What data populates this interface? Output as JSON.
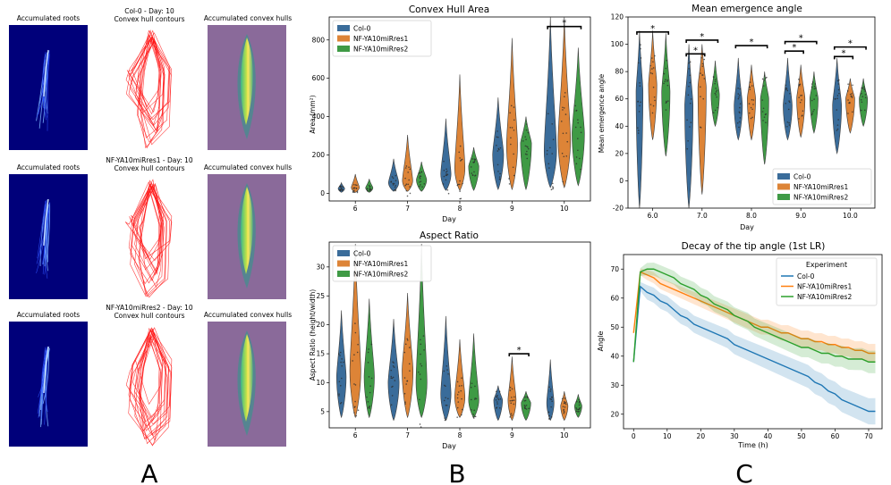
{
  "colors": {
    "col0": "#1f77b4",
    "res1": "#ff7f0e",
    "res2": "#2ca02c",
    "violin_blue": "#3a6c9a",
    "violin_orange": "#dd8437",
    "violin_green": "#3f9a45",
    "root_bg": "#00007a",
    "hull_bg": "#8a6a9a",
    "hull_line": "#ff1010",
    "sig_bar": "#000000"
  },
  "panel_letters": [
    "A",
    "B",
    "C"
  ],
  "panel_a": {
    "rows": [
      {
        "left_title": "Accumulated roots",
        "mid_title_1": "Col-0 - Day: 10",
        "mid_title_2": "Convex hull contours",
        "right_title": "Accumulated convex hulls"
      },
      {
        "left_title": "Accumulated roots",
        "mid_title_1": "NF-YA10miRres1 - Day: 10",
        "mid_title_2": "Convex hull contours",
        "right_title": "Accumulated convex hulls"
      },
      {
        "left_title": "Accumulated roots",
        "mid_title_1": "NF-YA10miRres2 - Day: 10",
        "mid_title_2": "Convex hull contours",
        "right_title": "Accumulated convex hulls"
      }
    ]
  },
  "chart_data": [
    {
      "id": "convex_hull_area",
      "type": "violin",
      "title": "Convex Hull Area",
      "xlabel": "Day",
      "ylabel": "Area (mm²)",
      "categories": [
        "6",
        "7",
        "8",
        "9",
        "10"
      ],
      "ylim": [
        -40,
        920
      ],
      "yticks": [
        0,
        200,
        400,
        600,
        800
      ],
      "legend": {
        "placement": "top-left",
        "entries": [
          "Col-0",
          "NF-YA10miRres1",
          "NF-YA10miRres2"
        ]
      },
      "series": [
        {
          "name": "Col-0",
          "color": "#3a6c9a",
          "min": [
            5,
            10,
            15,
            20,
            30
          ],
          "median": [
            25,
            55,
            100,
            200,
            220
          ],
          "max": [
            55,
            180,
            390,
            500,
            920
          ],
          "width": [
            0.45,
            0.7,
            0.7,
            0.75,
            0.85
          ]
        },
        {
          "name": "NF-YA10miRres1",
          "color": "#dd8437",
          "min": [
            5,
            10,
            15,
            20,
            30
          ],
          "median": [
            30,
            65,
            130,
            250,
            280
          ],
          "max": [
            100,
            305,
            620,
            810,
            920
          ],
          "width": [
            0.55,
            0.7,
            0.7,
            0.75,
            0.85
          ]
        },
        {
          "name": "NF-YA10miRres2",
          "color": "#3f9a45",
          "min": [
            5,
            10,
            15,
            20,
            40
          ],
          "median": [
            28,
            70,
            140,
            260,
            310
          ],
          "max": [
            75,
            165,
            240,
            400,
            760
          ],
          "width": [
            0.5,
            0.7,
            0.7,
            0.75,
            0.85
          ]
        }
      ],
      "significance": [
        {
          "day": "10",
          "label": "*",
          "level": 870
        }
      ]
    },
    {
      "id": "aspect_ratio",
      "type": "violin",
      "title": "Aspect Ratio",
      "xlabel": "Day",
      "ylabel": "Aspect Ratio (height/width)",
      "categories": [
        "6",
        "7",
        "8",
        "9",
        "10"
      ],
      "ylim": [
        2.2,
        34.3
      ],
      "yticks": [
        5,
        10,
        15,
        20,
        25,
        30
      ],
      "legend": {
        "placement": "top-left",
        "entries": [
          "Col-0",
          "NF-YA10miRres1",
          "NF-YA10miRres2"
        ]
      },
      "series": [
        {
          "name": "Col-0",
          "color": "#3a6c9a",
          "min": [
            4,
            3.5,
            3.5,
            3.5,
            3.5
          ],
          "median": [
            11,
            10,
            8,
            7,
            6.5
          ],
          "max": [
            22.5,
            21,
            21.5,
            9.5,
            14
          ],
          "width": [
            0.65,
            0.75,
            0.7,
            0.6,
            0.5
          ]
        },
        {
          "name": "NF-YA10miRres1",
          "color": "#dd8437",
          "min": [
            4,
            4,
            4,
            3.5,
            3.5
          ],
          "median": [
            12,
            12,
            7.5,
            7,
            6
          ],
          "max": [
            34,
            25.5,
            17.5,
            14.5,
            8.5
          ],
          "width": [
            0.75,
            0.75,
            0.7,
            0.55,
            0.5
          ]
        },
        {
          "name": "NF-YA10miRres2",
          "color": "#3f9a45",
          "min": [
            4,
            4,
            4,
            3.5,
            4
          ],
          "median": [
            11,
            10,
            7,
            6.5,
            6
          ],
          "max": [
            24.5,
            34,
            18.5,
            8.5,
            8
          ],
          "width": [
            0.7,
            0.75,
            0.7,
            0.65,
            0.5
          ]
        }
      ],
      "significance": [
        {
          "day": "9",
          "label": "*",
          "level": 15
        }
      ]
    },
    {
      "id": "mean_emergence_angle",
      "type": "violin",
      "title": "Mean emergence angle",
      "xlabel": "Day",
      "ylabel": "Mean emergence angle",
      "categories": [
        "6.0",
        "7.0",
        "8.0",
        "9.0",
        "10.0"
      ],
      "ylim": [
        -20,
        120
      ],
      "yticks": [
        -20,
        0,
        20,
        40,
        60,
        80,
        100,
        120
      ],
      "legend": {
        "placement": "bottom-right",
        "entries": [
          "Col-0",
          "NF-YA10miRres1",
          "NF-YA10miRres2"
        ]
      },
      "series": [
        {
          "name": "Col-0",
          "color": "#3a6c9a",
          "min": [
            -20,
            -20,
            30,
            30,
            20
          ],
          "median": [
            65,
            55,
            55,
            55,
            55
          ],
          "max": [
            110,
            100,
            90,
            90,
            90
          ],
          "width": [
            0.5,
            0.6,
            0.6,
            0.65,
            0.65
          ]
        },
        {
          "name": "NF-YA10miRres1",
          "color": "#dd8437",
          "min": [
            30,
            -10,
            30,
            32,
            35
          ],
          "median": [
            70,
            68,
            60,
            60,
            60
          ],
          "max": [
            110,
            100,
            85,
            85,
            75
          ],
          "width": [
            0.6,
            0.6,
            0.6,
            0.6,
            0.65
          ]
        },
        {
          "name": "NF-YA10miRres2",
          "color": "#3f9a45",
          "min": [
            18,
            40,
            12,
            35,
            40
          ],
          "median": [
            65,
            63,
            60,
            60,
            60
          ],
          "max": [
            108,
            88,
            80,
            80,
            75
          ],
          "width": [
            0.6,
            0.6,
            0.6,
            0.6,
            0.6
          ]
        }
      ],
      "significance": [
        {
          "day": "6.0",
          "pair": "0-2",
          "label": "*",
          "level": 109
        },
        {
          "day": "7.0",
          "pair": "0-1",
          "label": "*",
          "level": 93
        },
        {
          "day": "7.0",
          "pair": "0-2",
          "label": "*",
          "level": 103
        },
        {
          "day": "8.0",
          "pair": "0-2",
          "label": "*",
          "level": 99
        },
        {
          "day": "9.0",
          "pair": "0-1",
          "label": "*",
          "level": 95
        },
        {
          "day": "9.0",
          "pair": "0-2",
          "label": "*",
          "level": 102
        },
        {
          "day": "10.0",
          "pair": "0-1",
          "label": "*",
          "level": 91
        },
        {
          "day": "10.0",
          "pair": "0-2",
          "label": "*",
          "level": 98
        }
      ]
    },
    {
      "id": "tip_angle_decay",
      "type": "line",
      "title": "Decay of the tip angle (1st LR)",
      "xlabel": "Time (h)",
      "ylabel": "Angle",
      "xlim": [
        -3,
        74
      ],
      "ylim": [
        15,
        75
      ],
      "xticks": [
        0,
        10,
        20,
        30,
        40,
        50,
        60,
        70
      ],
      "yticks": [
        20,
        30,
        40,
        50,
        60,
        70
      ],
      "legend": {
        "placement": "top-right",
        "title": "Experiment",
        "entries": [
          "Col-0",
          "NF-YA10miRres1",
          "NF-YA10miRres2"
        ]
      },
      "series": [
        {
          "name": "Col-0",
          "color": "#1f77b4",
          "x": [
            0,
            2,
            4,
            6,
            8,
            10,
            12,
            14,
            16,
            18,
            20,
            22,
            24,
            26,
            28,
            30,
            32,
            34,
            36,
            38,
            40,
            42,
            44,
            46,
            48,
            50,
            52,
            54,
            56,
            58,
            60,
            62,
            64,
            66,
            68,
            70,
            72
          ],
          "y": [
            38,
            64,
            62,
            61,
            59,
            58,
            56,
            54,
            53,
            51,
            50,
            49,
            48,
            47,
            46,
            44,
            43,
            42,
            41,
            40,
            39,
            38,
            37,
            36,
            35,
            34,
            33,
            31,
            30,
            28,
            27,
            25,
            24,
            23,
            22,
            21,
            21
          ],
          "ci": 3.5
        },
        {
          "name": "NF-YA10miRres1",
          "color": "#ff7f0e",
          "x": [
            0,
            2,
            4,
            6,
            8,
            10,
            12,
            14,
            16,
            18,
            20,
            22,
            24,
            26,
            28,
            30,
            32,
            34,
            36,
            38,
            40,
            42,
            44,
            46,
            48,
            50,
            52,
            54,
            56,
            58,
            60,
            62,
            64,
            66,
            68,
            70,
            72
          ],
          "y": [
            48,
            69,
            68,
            67,
            65,
            64,
            63,
            62,
            61,
            60,
            59,
            58,
            57,
            56,
            55,
            54,
            53,
            52,
            51,
            50,
            50,
            49,
            48,
            48,
            47,
            46,
            46,
            45,
            45,
            44,
            44,
            43,
            43,
            42,
            42,
            41,
            41
          ],
          "ci": 2.5
        },
        {
          "name": "NF-YA10miRres2",
          "color": "#2ca02c",
          "x": [
            0,
            2,
            4,
            6,
            8,
            10,
            12,
            14,
            16,
            18,
            20,
            22,
            24,
            26,
            28,
            30,
            32,
            34,
            36,
            38,
            40,
            42,
            44,
            46,
            48,
            50,
            52,
            54,
            56,
            58,
            60,
            62,
            64,
            66,
            68,
            70,
            72
          ],
          "y": [
            38,
            69,
            70,
            70,
            69,
            68,
            67,
            65,
            64,
            63,
            61,
            60,
            58,
            57,
            56,
            54,
            53,
            52,
            50,
            49,
            48,
            47,
            46,
            45,
            44,
            43,
            43,
            42,
            41,
            41,
            40,
            40,
            39,
            39,
            39,
            38,
            38
          ],
          "ci": 3
        }
      ]
    }
  ]
}
